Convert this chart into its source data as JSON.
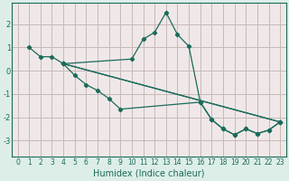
{
  "xlabel": "Humidex (Indice chaleur)",
  "bg_color": "#ddeee8",
  "plot_bg_color": "#f0e8e8",
  "grid_color": "#c8b8b8",
  "line_color": "#1a6b5a",
  "xlim": [
    -0.5,
    23.5
  ],
  "ylim": [
    -3.7,
    2.9
  ],
  "xticks": [
    0,
    1,
    2,
    3,
    4,
    5,
    6,
    7,
    8,
    9,
    10,
    11,
    12,
    13,
    14,
    15,
    16,
    17,
    18,
    19,
    20,
    21,
    22,
    23
  ],
  "yticks": [
    -3,
    -2,
    -1,
    0,
    1,
    2
  ],
  "lines": [
    {
      "x": [
        1,
        2,
        3,
        4,
        10,
        11,
        12,
        13,
        14,
        15,
        16,
        17,
        18,
        19,
        20,
        21,
        22,
        23
      ],
      "y": [
        1.0,
        0.6,
        0.6,
        0.3,
        0.5,
        1.35,
        1.65,
        2.5,
        1.55,
        1.05,
        -1.35,
        -2.1,
        -2.5,
        -2.75,
        -2.5,
        -2.7,
        -2.55,
        -2.2
      ]
    },
    {
      "x": [
        4,
        5,
        6,
        7,
        8,
        9,
        16,
        17,
        18,
        19,
        20,
        21,
        22,
        23
      ],
      "y": [
        0.3,
        -0.2,
        -0.6,
        -0.85,
        -1.2,
        -1.65,
        -1.35,
        -2.1,
        -2.5,
        -2.75,
        -2.5,
        -2.7,
        -2.55,
        -2.2
      ]
    },
    {
      "x": [
        4,
        23
      ],
      "y": [
        0.3,
        -2.2
      ]
    },
    {
      "x": [
        4,
        23
      ],
      "y": [
        0.3,
        -2.2
      ]
    }
  ],
  "spine_color": "#1a6b5a",
  "tick_labelsize": 5.5,
  "xlabel_fontsize": 7
}
